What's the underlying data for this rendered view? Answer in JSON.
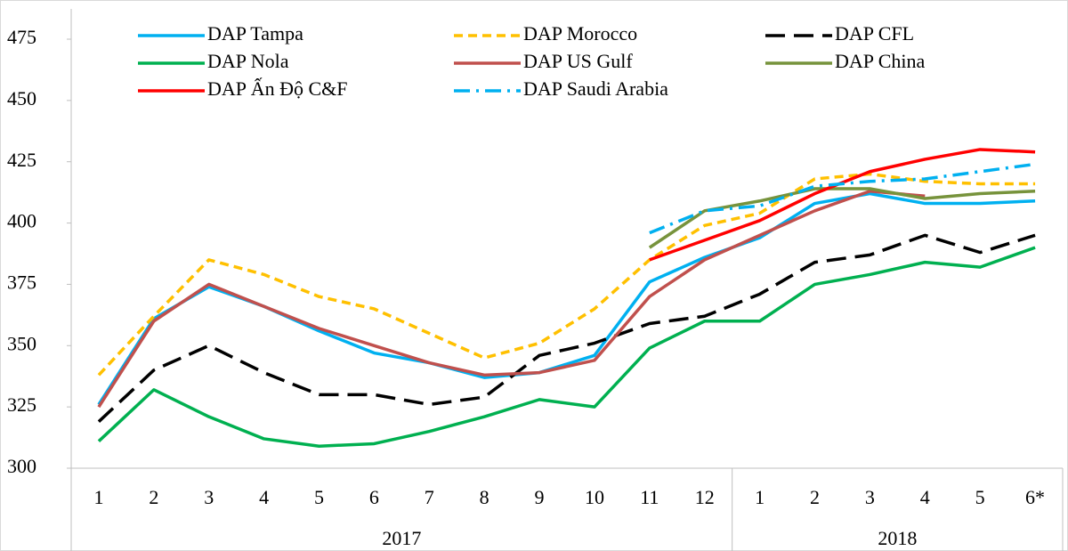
{
  "chart_data": {
    "type": "line",
    "categories": [
      "1",
      "2",
      "3",
      "4",
      "5",
      "6",
      "7",
      "8",
      "9",
      "10",
      "11",
      "12",
      "1",
      "2",
      "3",
      "4",
      "5",
      "6*"
    ],
    "groups": [
      {
        "label": "2017",
        "span": 12
      },
      {
        "label": "2018",
        "span": 6
      }
    ],
    "ylim": [
      300,
      475
    ],
    "yticks": [
      300,
      325,
      350,
      375,
      400,
      425,
      450,
      475
    ],
    "grid": false,
    "legend": "top",
    "series": [
      {
        "name": "DAP Tampa",
        "color": "#00b0f0",
        "style": "solid",
        "values": [
          326,
          361,
          374,
          366,
          356,
          347,
          343,
          337,
          339,
          346,
          376,
          386,
          394,
          408,
          412,
          408,
          408,
          409
        ]
      },
      {
        "name": "DAP Morocco",
        "color": "#ffc000",
        "style": "dashed",
        "values": [
          338,
          362,
          385,
          379,
          370,
          365,
          355,
          345,
          351,
          365,
          385,
          399,
          404,
          418,
          420,
          417,
          416,
          416
        ]
      },
      {
        "name": "DAP CFL",
        "color": "#000000",
        "style": "longdash",
        "values": [
          319,
          340,
          350,
          339,
          330,
          330,
          326,
          329,
          346,
          351,
          359,
          362,
          371,
          384,
          387,
          395,
          388,
          395
        ]
      },
      {
        "name": "DAP Nola",
        "color": "#00b050",
        "style": "solid",
        "values": [
          311,
          332,
          321,
          312,
          309,
          310,
          315,
          321,
          328,
          325,
          349,
          360,
          360,
          375,
          379,
          384,
          382,
          390
        ]
      },
      {
        "name": "DAP US Gulf",
        "color": "#c0504d",
        "style": "solid",
        "values": [
          325,
          360,
          375,
          366,
          357,
          350,
          343,
          338,
          339,
          344,
          370,
          385,
          395,
          405,
          413,
          411,
          null,
          null
        ]
      },
      {
        "name": "DAP China",
        "color": "#77933c",
        "style": "solid",
        "values": [
          null,
          null,
          null,
          null,
          null,
          null,
          null,
          null,
          null,
          null,
          390,
          405,
          409,
          414,
          414,
          410,
          412,
          413
        ]
      },
      {
        "name": "DAP Ấn Độ C&F",
        "color": "#ff0000",
        "style": "solid",
        "values": [
          null,
          null,
          null,
          null,
          null,
          null,
          null,
          null,
          null,
          null,
          385,
          393,
          401,
          412,
          421,
          426,
          430,
          429
        ]
      },
      {
        "name": "DAP Saudi Arabia",
        "color": "#00b0f0",
        "style": "dashdot",
        "values": [
          null,
          null,
          null,
          null,
          null,
          null,
          null,
          null,
          null,
          null,
          396,
          405,
          407,
          415,
          417,
          418,
          421,
          424
        ]
      }
    ]
  }
}
